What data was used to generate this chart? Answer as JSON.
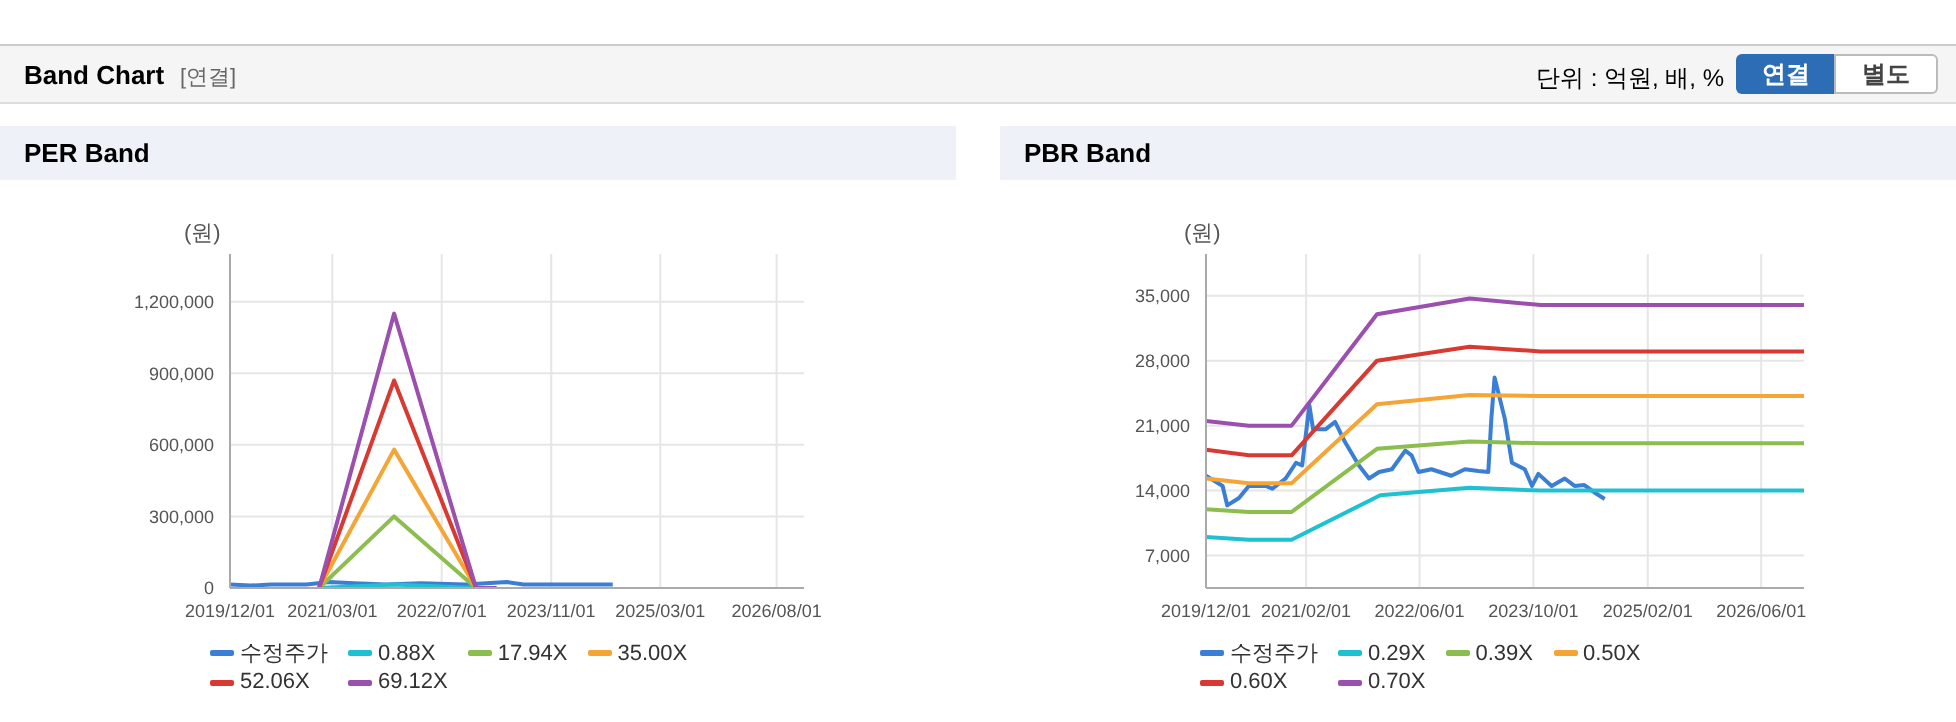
{
  "chart_data": [
    {
      "type": "line",
      "title": "PER Band",
      "ylabel": "(원)",
      "annotations": [
        "Band Chart",
        "[연결]",
        "단위 : 억원, 배, %",
        "연결",
        "별도"
      ],
      "xlim": [
        "2019-12-01",
        "2026-12-01"
      ],
      "xticks": [
        {
          "value": "2019-12-01",
          "label": "2019/12/01"
        },
        {
          "value": "2021-03-01",
          "label": "2021/03/01"
        },
        {
          "value": "2022-07-01",
          "label": "2022/07/01"
        },
        {
          "value": "2023-11-01",
          "label": "2023/11/01"
        },
        {
          "value": "2025-03-01",
          "label": "2025/03/01"
        },
        {
          "value": "2026-08-01",
          "label": "2026/08/01"
        }
      ],
      "ylim": [
        0,
        1400000
      ],
      "yticks": [
        0,
        {
          "value": 300000,
          "label": "300,000"
        },
        {
          "value": 600000,
          "label": "600,000"
        },
        {
          "value": 900000,
          "label": "900,000"
        },
        {
          "value": 1200000,
          "label": "1,200,000"
        }
      ],
      "grid": true,
      "legend": "bottom",
      "series": [
        {
          "name": "수정주가",
          "color": "#3a7fd5",
          "x": [
            "2019-12-01",
            "2020-03-01",
            "2020-06-01",
            "2020-11-05",
            "2021-02-15",
            "2021-06-05",
            "2021-10-28",
            "2022-04-01",
            "2022-10-15",
            "2023-04-18",
            "2023-07-01",
            "2023-12-18",
            "2024-08-01"
          ],
          "values": [
            15000,
            10000,
            15000,
            15000,
            25000,
            20000,
            15000,
            20000,
            15000,
            25000,
            15000,
            15000,
            15000
          ]
        },
        {
          "name": "0.88X",
          "color": "#1fc0d0",
          "x": [
            "2021-01-01",
            "2021-12-01",
            "2022-12-01",
            "2023-03-01"
          ],
          "values": [
            0,
            15000,
            0,
            0
          ]
        },
        {
          "name": "17.94X",
          "color": "#8bbd4f",
          "x": [
            "2021-01-01",
            "2021-12-01",
            "2022-12-01",
            "2023-03-01"
          ],
          "values": [
            0,
            300000,
            0,
            0
          ]
        },
        {
          "name": "35.00X",
          "color": "#f5a535",
          "x": [
            "2021-01-01",
            "2021-12-01",
            "2022-12-01",
            "2023-03-01"
          ],
          "values": [
            0,
            580000,
            0,
            0
          ]
        },
        {
          "name": "52.06X",
          "color": "#d83a32",
          "x": [
            "2021-01-01",
            "2021-12-01",
            "2022-12-01",
            "2023-03-01"
          ],
          "values": [
            0,
            870000,
            0,
            0
          ]
        },
        {
          "name": "69.12X",
          "color": "#9b4fae",
          "x": [
            "2021-01-01",
            "2021-12-01",
            "2022-12-01",
            "2023-03-01"
          ],
          "values": [
            0,
            1150000,
            0,
            0
          ]
        }
      ]
    },
    {
      "type": "line",
      "title": "PBR Band",
      "ylabel": "(원)",
      "xlim": [
        "2019-12-01",
        "2026-12-01"
      ],
      "xticks": [
        {
          "value": "2019-12-01",
          "label": "2019/12/01"
        },
        {
          "value": "2021-02-01",
          "label": "2021/02/01"
        },
        {
          "value": "2022-06-01",
          "label": "2022/06/01"
        },
        {
          "value": "2023-10-01",
          "label": "2023/10/01"
        },
        {
          "value": "2025-02-01",
          "label": "2025/02/01"
        },
        {
          "value": "2026-06-01",
          "label": "2026/06/01"
        }
      ],
      "ylim": [
        3500,
        39500
      ],
      "yticks": [
        {
          "value": 7000,
          "label": "7,000"
        },
        {
          "value": 14000,
          "label": "14,000"
        },
        {
          "value": 21000,
          "label": "21,000"
        },
        {
          "value": 28000,
          "label": "28,000"
        },
        {
          "value": 35000,
          "label": "35,000"
        }
      ],
      "grid": true,
      "legend": "bottom",
      "series": [
        {
          "name": "수정주가",
          "color": "#3a7fd5",
          "x": [
            "2019-12-01",
            "2020-02-10",
            "2020-03-01",
            "2020-04-20",
            "2020-06-01",
            "2020-08-12",
            "2020-09-10",
            "2020-11-05",
            "2020-12-20",
            "2021-01-15",
            "2021-02-15",
            "2021-03-03",
            "2021-04-25",
            "2021-06-05",
            "2021-07-18",
            "2021-09-15",
            "2021-10-28",
            "2021-12-10",
            "2022-02-03",
            "2022-04-01",
            "2022-04-28",
            "2022-05-28",
            "2022-07-22",
            "2022-10-15",
            "2022-12-12",
            "2023-02-08",
            "2023-03-22",
            "2023-04-04",
            "2023-04-18",
            "2023-06-01",
            "2023-07-01",
            "2023-08-25",
            "2023-09-25",
            "2023-10-22",
            "2023-12-18",
            "2024-02-12",
            "2024-03-25",
            "2024-05-06",
            "2024-06-18",
            "2024-08-01"
          ],
          "values": [
            15600,
            14500,
            12400,
            13200,
            14500,
            14500,
            14200,
            15300,
            17000,
            16700,
            23200,
            20600,
            20600,
            21400,
            19200,
            16700,
            15300,
            16000,
            16300,
            18300,
            17800,
            16000,
            16300,
            15600,
            16300,
            16100,
            16000,
            21700,
            26200,
            21700,
            17000,
            16300,
            14500,
            15800,
            14500,
            15300,
            14500,
            14600,
            13800,
            13100
          ]
        },
        {
          "name": "0.29X",
          "color": "#1fc0d0",
          "x": [
            "2019-12-01",
            "2020-06-01",
            "2020-12-01",
            "2021-12-15",
            "2023-01-01",
            "2023-11-01",
            "2026-12-01"
          ],
          "values": [
            9000,
            8700,
            8700,
            13500,
            14300,
            14000,
            14000
          ]
        },
        {
          "name": "0.39X",
          "color": "#8bbd4f",
          "x": [
            "2019-12-01",
            "2020-06-01",
            "2020-12-01",
            "2021-12-01",
            "2023-01-01",
            "2023-11-01",
            "2026-12-01"
          ],
          "values": [
            12000,
            11700,
            11700,
            18500,
            19300,
            19100,
            19100
          ]
        },
        {
          "name": "0.50X",
          "color": "#f5a535",
          "x": [
            "2019-12-01",
            "2020-06-01",
            "2020-12-01",
            "2021-12-01",
            "2023-01-01",
            "2023-11-01",
            "2026-12-01"
          ],
          "values": [
            15300,
            14800,
            14800,
            23300,
            24300,
            24200,
            24200
          ]
        },
        {
          "name": "0.60X",
          "color": "#d83a32",
          "x": [
            "2019-12-01",
            "2020-06-01",
            "2020-12-01",
            "2021-12-01",
            "2023-01-01",
            "2023-11-01",
            "2026-12-01"
          ],
          "values": [
            18400,
            17800,
            17800,
            28000,
            29500,
            29000,
            29000
          ]
        },
        {
          "name": "0.70X",
          "color": "#9b4fae",
          "x": [
            "2019-12-01",
            "2020-06-01",
            "2020-12-01",
            "2021-12-01",
            "2023-01-01",
            "2023-11-01",
            "2026-12-01"
          ],
          "values": [
            21500,
            21000,
            21000,
            33000,
            34700,
            34000,
            34000
          ]
        }
      ]
    }
  ]
}
